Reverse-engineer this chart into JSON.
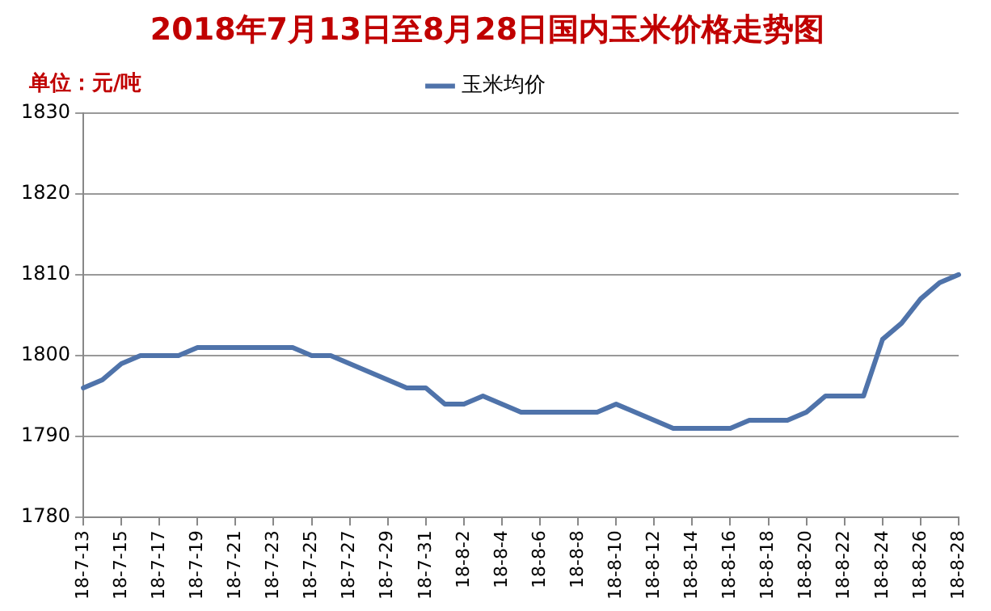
{
  "chart_data": {
    "type": "line",
    "title": "2018年7月13日至8月28日国内玉米价格走势图",
    "ylabel": "单位：元/吨",
    "categories": [
      "18-7-13",
      null,
      "18-7-15",
      null,
      "18-7-17",
      null,
      "18-7-19",
      null,
      "18-7-21",
      null,
      "18-7-23",
      null,
      "18-7-25",
      null,
      "18-7-27",
      null,
      "18-7-29",
      null,
      "18-7-31",
      null,
      "18-8-2",
      null,
      "18-8-4",
      null,
      "18-8-6",
      null,
      "18-8-8",
      null,
      "18-8-10",
      null,
      "18-8-12",
      null,
      "18-8-14",
      null,
      "18-8-16",
      null,
      "18-8-18",
      null,
      "18-8-20",
      null,
      "18-8-22",
      null,
      "18-8-24",
      null,
      "18-8-26",
      null,
      "18-8-28"
    ],
    "series": [
      {
        "name": "玉米均价",
        "color": "#4f73aa",
        "values": [
          1796,
          1797,
          1799,
          1800,
          1800,
          1800,
          1801,
          1801,
          1801,
          1801,
          1801,
          1801,
          1800,
          1800,
          1799,
          1798,
          1797,
          1796,
          1796,
          1794,
          1794,
          1795,
          1794,
          1793,
          1793,
          1793,
          1793,
          1793,
          1794,
          1793,
          1792,
          1791,
          1791,
          1791,
          1791,
          1792,
          1792,
          1792,
          1793,
          1795,
          1795,
          1795,
          1802,
          1804,
          1807,
          1809,
          1810
        ]
      }
    ],
    "ylim": [
      1780,
      1830
    ],
    "yticks": [
      1780,
      1790,
      1800,
      1810,
      1820,
      1830
    ],
    "grid": "y",
    "legend": "top",
    "marker": "none",
    "line_style": "solid"
  }
}
